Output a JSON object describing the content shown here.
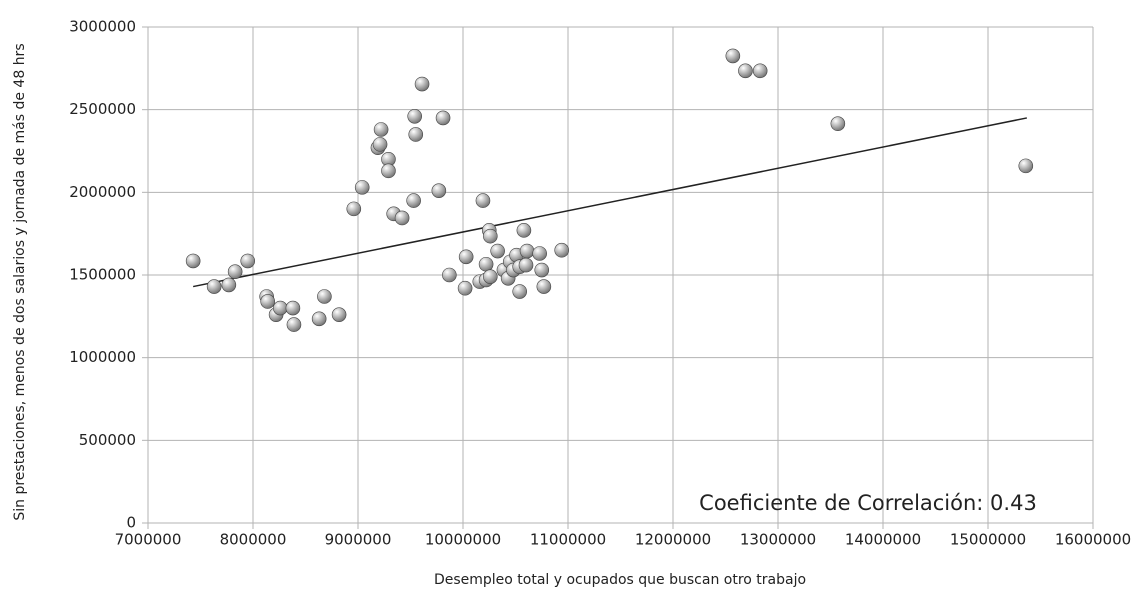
{
  "chart_data": {
    "type": "scatter",
    "x_label": "Desempleo total y ocupados que buscan otro trabajo",
    "y_label": "Sin prestaciones, menos de dos salarios y jornada de más de 48 hrs",
    "annotation": "Coeficiente de Correlación: 0.43",
    "xlim": [
      7000000,
      16000000
    ],
    "xticks": [
      7000000,
      8000000,
      9000000,
      10000000,
      11000000,
      12000000,
      13000000,
      14000000,
      15000000,
      16000000
    ],
    "ylim": [
      0,
      3000000
    ],
    "yticks": [
      0,
      500000,
      1000000,
      1500000,
      2000000,
      2500000,
      3000000
    ],
    "grid": true,
    "color": "#6e6e6e",
    "trendline": {
      "x": [
        7430000,
        15370000
      ],
      "y": [
        1430000,
        2450000
      ],
      "color": "#222222"
    },
    "x": [
      7430000,
      7630000,
      7770000,
      7830000,
      7950000,
      8130000,
      8140000,
      8220000,
      8260000,
      8380000,
      8390000,
      8630000,
      8680000,
      8820000,
      8960000,
      9040000,
      9190000,
      9220000,
      9210000,
      9290000,
      9290000,
      9340000,
      9420000,
      9530000,
      9540000,
      9550000,
      9610000,
      9770000,
      9810000,
      9870000,
      10020000,
      10030000,
      10160000,
      10190000,
      10220000,
      10220000,
      10250000,
      10260000,
      10260000,
      10330000,
      10390000,
      10430000,
      10450000,
      10480000,
      10510000,
      10540000,
      10540000,
      10580000,
      10600000,
      10610000,
      10730000,
      10750000,
      10770000,
      10940000,
      12570000,
      12690000,
      12830000,
      13570000,
      15360000
    ],
    "y": [
      1585000,
      1430000,
      1440000,
      1520000,
      1585000,
      1370000,
      1340000,
      1260000,
      1300000,
      1300000,
      1200000,
      1235000,
      1370000,
      1260000,
      1900000,
      2030000,
      2270000,
      2380000,
      2290000,
      2200000,
      2130000,
      1870000,
      1845000,
      1950000,
      2460000,
      2350000,
      2655000,
      2010000,
      2450000,
      1500000,
      1420000,
      1610000,
      1460000,
      1950000,
      1470000,
      1565000,
      1770000,
      1735000,
      1490000,
      1645000,
      1530000,
      1480000,
      1580000,
      1530000,
      1620000,
      1550000,
      1400000,
      1770000,
      1560000,
      1645000,
      1630000,
      1530000,
      1430000,
      1650000,
      2825000,
      2735000,
      2735000,
      2415000,
      2160000
    ]
  }
}
